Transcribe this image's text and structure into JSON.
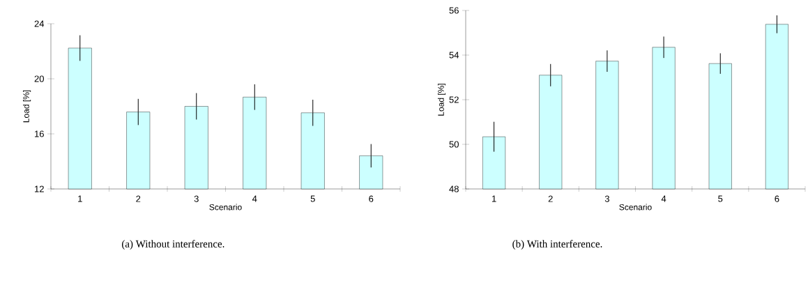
{
  "chart_data": [
    {
      "type": "bar",
      "categories": [
        "1",
        "2",
        "3",
        "4",
        "5",
        "6"
      ],
      "values": [
        22.23,
        17.59,
        18.0,
        18.67,
        17.53,
        14.41
      ],
      "errors": [
        0.93,
        0.95,
        0.96,
        0.93,
        0.95,
        0.85
      ],
      "color": "#ccffff",
      "ylim": [
        12,
        24
      ],
      "yticks": [
        12,
        16,
        20,
        24
      ],
      "xlabel": "Scenario",
      "ylabel": "Load [%]",
      "annotations": [
        "(a) Without interference."
      ]
    },
    {
      "type": "bar",
      "categories": [
        "1",
        "2",
        "3",
        "4",
        "5",
        "6"
      ],
      "values": [
        50.34,
        53.1,
        53.73,
        54.35,
        53.62,
        55.38
      ],
      "errors": [
        0.67,
        0.5,
        0.48,
        0.48,
        0.46,
        0.4
      ],
      "color": "#ccffff",
      "ylim": [
        48,
        56
      ],
      "yticks": [
        48,
        50,
        52,
        54,
        56
      ],
      "xlabel": "Scenario",
      "ylabel": "Load [%]",
      "annotations": [
        "(b) With interference."
      ]
    }
  ]
}
